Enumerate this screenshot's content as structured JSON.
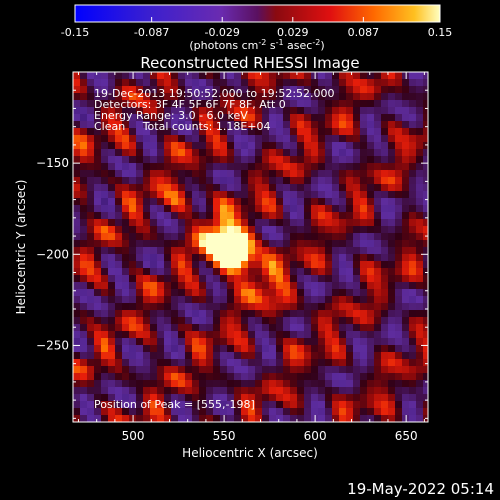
{
  "chart_data": {
    "type": "heatmap",
    "title": "Reconstructed RHESSI Image",
    "xlabel": "Heliocentric X (arcsec)",
    "ylabel": "Heliocentric Y (arcsec)",
    "xlim": [
      467,
      662
    ],
    "ylim": [
      -292,
      -100
    ],
    "x_ticks": [
      500,
      550,
      600,
      650
    ],
    "y_ticks": [
      -150,
      -200,
      -250
    ],
    "colorbar": {
      "range": [
        -0.15,
        0.15
      ],
      "tick_labels": [
        "-0.15",
        "-0.087",
        "-0.029",
        "0.029",
        "0.087",
        "0.15"
      ],
      "unit_prefix": "(photons cm",
      "unit_exp1": "-2",
      "unit_mid": " s",
      "unit_exp2": "-1",
      "unit_mid2": " asec",
      "unit_exp3": "-2",
      "unit_suffix": ")"
    },
    "peak": {
      "x": 555,
      "y": -198,
      "label": "Position of Peak = [555,-198]"
    },
    "annotations": [
      "19-Dec-2013 19:50:52.000 to 19:52:52.000",
      "Detectors: 3F 4F 5F 6F 7F 8F, Att 0",
      "Energy Range: 3.0 - 6.0 keV",
      "Clean     Total counts: 1.18E+04"
    ]
  },
  "footer": {
    "timestamp": "19-May-2022 05:14"
  },
  "colors": {
    "background": "#000000",
    "text": "#ffffff"
  }
}
